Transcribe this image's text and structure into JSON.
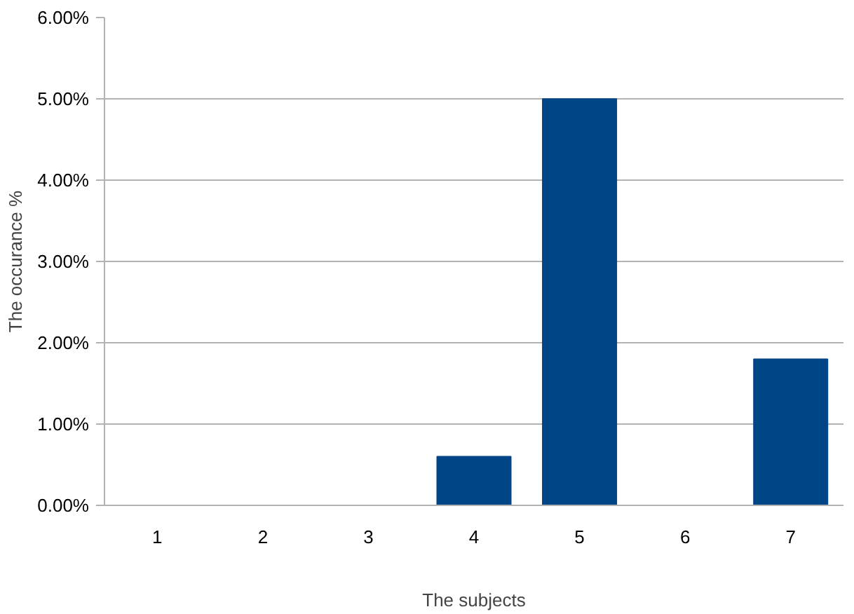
{
  "chart_data": {
    "type": "bar",
    "xlabel": "The subjects",
    "ylabel": "The occurance %",
    "categories": [
      "1",
      "2",
      "3",
      "4",
      "5",
      "6",
      "7"
    ],
    "values": [
      0,
      0,
      0,
      0.6,
      5.0,
      0,
      1.8
    ],
    "color": "#004586",
    "ylim": [
      0,
      6
    ],
    "yticks": [
      {
        "value": 0,
        "label": "0.00%"
      },
      {
        "value": 1,
        "label": "1.00%"
      },
      {
        "value": 2,
        "label": "2.00%"
      },
      {
        "value": 3,
        "label": "3.00%"
      },
      {
        "value": 4,
        "label": "4.00%"
      },
      {
        "value": 5,
        "label": "5.00%"
      },
      {
        "value": 6,
        "label": "6.00%"
      }
    ],
    "grid": "y"
  }
}
